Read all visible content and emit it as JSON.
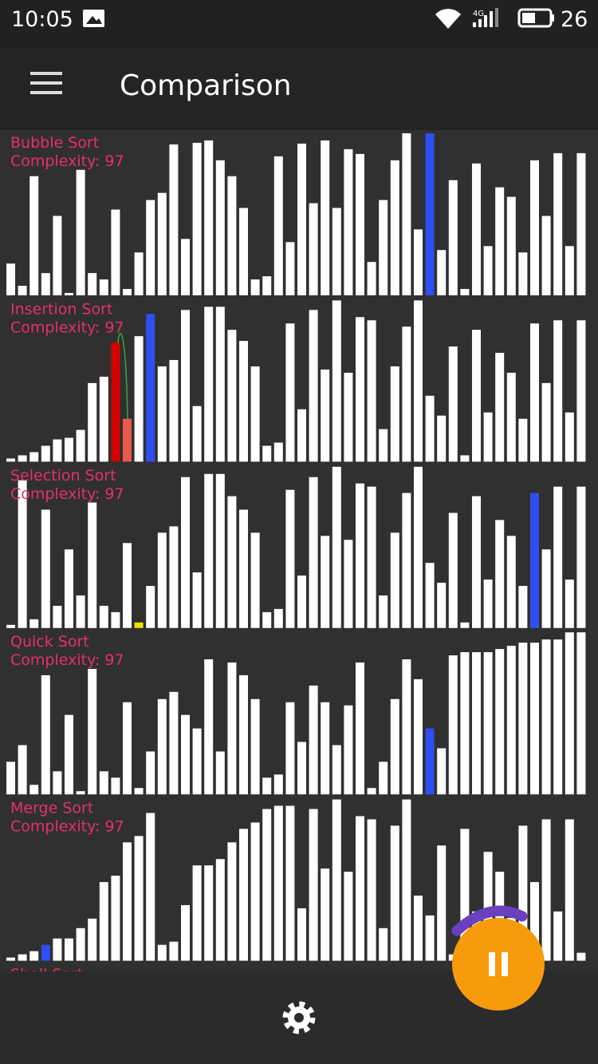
{
  "status_bar": {
    "time": "10:05",
    "network": "4G",
    "battery": "26"
  },
  "app_bar": {
    "title": "Comparison"
  },
  "ylim": [
    0,
    205
  ],
  "panels": [
    {
      "name": "Bubble Sort",
      "complexity": "Complexity: 97",
      "values": [
        40,
        12,
        150,
        28,
        100,
        3,
        158,
        28,
        20,
        108,
        8,
        54,
        120,
        129,
        190,
        71,
        192,
        195,
        170,
        150,
        110,
        20,
        24,
        175,
        67,
        191,
        116,
        195,
        110,
        184,
        178,
        42,
        120,
        170,
        204,
        83,
        204,
        57,
        145,
        8,
        166,
        62,
        136,
        124,
        54,
        170,
        100,
        179,
        62,
        179
      ],
      "highlights": [
        {
          "index": 36,
          "color": "#2f4ff0"
        }
      ]
    },
    {
      "name": "Insertion Sort",
      "complexity": "Complexity: 97",
      "values": [
        4,
        8,
        12,
        20,
        28,
        30,
        40,
        99,
        107,
        150,
        54,
        158,
        186,
        120,
        128,
        191,
        70,
        195,
        195,
        166,
        152,
        120,
        20,
        24,
        174,
        66,
        191,
        116,
        203,
        112,
        182,
        178,
        41,
        120,
        170,
        203,
        83,
        58,
        145,
        8,
        166,
        62,
        137,
        112,
        54,
        174,
        99,
        178,
        62,
        178
      ],
      "highlights": [
        {
          "index": 9,
          "color": "#d40000"
        },
        {
          "index": 10,
          "color": "#e85a50"
        },
        {
          "index": 12,
          "color": "#2f4ff0"
        }
      ]
    },
    {
      "name": "Selection Sort",
      "complexity": "Complexity: 97",
      "values": [
        4,
        186,
        11,
        149,
        28,
        99,
        41,
        158,
        28,
        20,
        107,
        7,
        53,
        120,
        128,
        190,
        70,
        194,
        194,
        166,
        149,
        120,
        20,
        24,
        174,
        66,
        190,
        116,
        203,
        111,
        182,
        178,
        41,
        120,
        170,
        203,
        82,
        57,
        145,
        7,
        166,
        61,
        136,
        116,
        53,
        170,
        99,
        178,
        61,
        178
      ],
      "highlights": [
        {
          "index": 11,
          "color": "#f0e000"
        },
        {
          "index": 45,
          "color": "#2f4ff0"
        }
      ]
    },
    {
      "name": "Quick Sort",
      "complexity": "Complexity: 97",
      "values": [
        41,
        62,
        12,
        150,
        29,
        100,
        4,
        158,
        29,
        21,
        116,
        8,
        54,
        120,
        129,
        100,
        83,
        170,
        54,
        166,
        150,
        120,
        21,
        25,
        116,
        66,
        137,
        116,
        62,
        112,
        166,
        8,
        41,
        120,
        170,
        145,
        83,
        58,
        175,
        179,
        179,
        179,
        183,
        187,
        191,
        191,
        195,
        195,
        204,
        204
      ],
      "highlights": [
        {
          "index": 36,
          "color": "#2f4ff0"
        }
      ]
    },
    {
      "name": "Merge Sort",
      "complexity": "Complexity: 97",
      "values": [
        4,
        8,
        12,
        20,
        28,
        28,
        41,
        53,
        99,
        107,
        149,
        157,
        186,
        20,
        24,
        70,
        120,
        120,
        128,
        149,
        166,
        174,
        191,
        195,
        195,
        66,
        191,
        116,
        203,
        112,
        182,
        178,
        41,
        170,
        203,
        82,
        57,
        145,
        8,
        166,
        62,
        137,
        112,
        54,
        170,
        99,
        178,
        62,
        178,
        10
      ],
      "highlights": [
        {
          "index": 3,
          "color": "#2f4ff0"
        }
      ]
    },
    {
      "name": "Shell Sort"
    }
  ]
}
